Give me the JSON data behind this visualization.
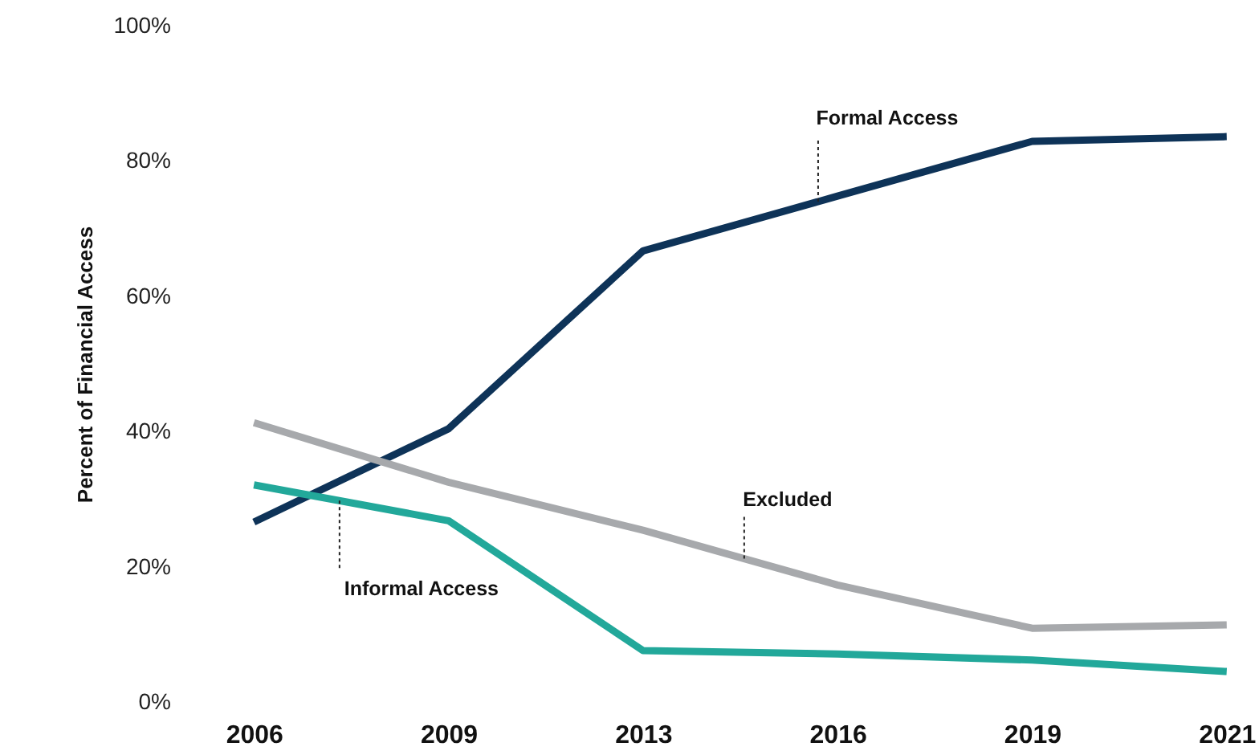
{
  "chart_data": {
    "type": "line",
    "ylabel": "Percent of Financial Access",
    "categories": [
      "2006",
      "2009",
      "2013",
      "2016",
      "2019",
      "2021"
    ],
    "ylim": [
      0,
      100
    ],
    "yticks": [
      {
        "value": 0,
        "label": "0%"
      },
      {
        "value": 20,
        "label": "20%"
      },
      {
        "value": 40,
        "label": "40%"
      },
      {
        "value": 60,
        "label": "60%"
      },
      {
        "value": 80,
        "label": "80%"
      },
      {
        "value": 100,
        "label": "100%"
      }
    ],
    "line_style": "solid",
    "series": [
      {
        "name": "Formal Access",
        "color": "#0e3358",
        "values": [
          26.6,
          40.4,
          66.7,
          74.8,
          82.9,
          83.6
        ]
      },
      {
        "name": "Excluded",
        "color": "#a7a9ac",
        "values": [
          41.3,
          32.5,
          25.4,
          17.3,
          10.9,
          11.4
        ]
      },
      {
        "name": "Informal Access",
        "color": "#22a89a",
        "values": [
          32.1,
          26.8,
          7.6,
          7.1,
          6.2,
          4.5
        ]
      }
    ]
  }
}
